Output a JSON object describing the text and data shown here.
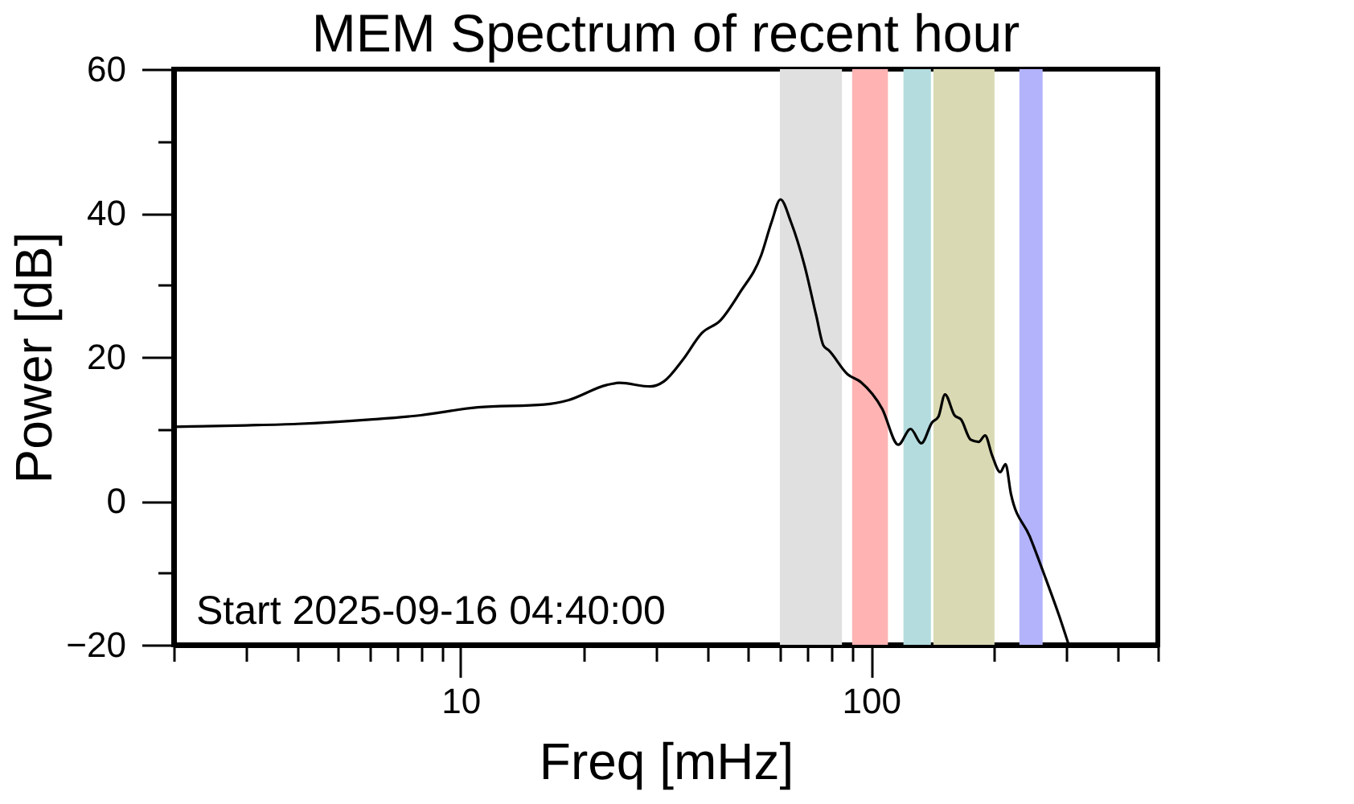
{
  "chart_data": {
    "type": "line",
    "title": "MEM Spectrum of recent hour",
    "xlabel": "Freq [mHz]",
    "ylabel": "Power [dB]",
    "x": [
      2,
      3,
      4,
      6,
      8,
      11,
      16,
      18.3,
      22.7,
      24.4,
      29,
      31.3,
      34.8,
      38.7,
      43,
      48,
      54,
      57.3,
      60.2,
      63.8,
      68.9,
      73.6,
      76.6,
      79,
      87.7,
      94.5,
      106.5,
      116.6,
      124.9,
      132.7,
      140.9,
      146,
      151.5,
      159.8,
      165.8,
      175,
      183,
      189.7,
      197.4,
      206.5,
      212.8,
      219.3,
      243.6,
      266.6,
      287.2,
      302.5
    ],
    "series": [
      {
        "color": "#000000",
        "values": [
          10.3,
          10.5,
          10.7,
          11.3,
          11.9,
          13.0,
          13.4,
          14.0,
          16.1,
          16.4,
          15.9,
          16.6,
          19.6,
          23.3,
          25.1,
          29.0,
          34.1,
          38.8,
          41.9,
          38.8,
          32.7,
          25.7,
          21.6,
          20.9,
          17.6,
          16.5,
          12.8,
          7.8,
          10.0,
          8.0,
          10.9,
          11.7,
          14.8,
          11.9,
          11.3,
          8.5,
          8.2,
          9.1,
          6.3,
          4.0,
          5.1,
          1.0,
          -4.9,
          -10.8,
          -15.9,
          -19.8
        ]
      }
    ],
    "xlim": [
      2,
      500
    ],
    "ylim": [
      -20,
      60
    ],
    "xticks": [
      {
        "value": 2,
        "label": null
      },
      {
        "value": 3,
        "label": null
      },
      {
        "value": 4,
        "label": null
      },
      {
        "value": 5,
        "label": null
      },
      {
        "value": 6,
        "label": null
      },
      {
        "value": 7,
        "label": null
      },
      {
        "value": 8,
        "label": null
      },
      {
        "value": 9,
        "label": null
      },
      10,
      {
        "value": 20,
        "label": null
      },
      {
        "value": 30,
        "label": null
      },
      {
        "value": 40,
        "label": null
      },
      {
        "value": 50,
        "label": null
      },
      {
        "value": 60,
        "label": null
      },
      {
        "value": 70,
        "label": null
      },
      {
        "value": 80,
        "label": null
      },
      {
        "value": 90,
        "label": null
      },
      100,
      {
        "value": 200,
        "label": null
      },
      {
        "value": 300,
        "label": null
      },
      {
        "value": 400,
        "label": null
      },
      {
        "value": 500,
        "label": null
      }
    ],
    "yticks": [
      -20,
      {
        "value": -10,
        "label": null
      },
      0,
      {
        "value": 10,
        "label": null
      },
      20,
      {
        "value": 30,
        "label": null
      },
      40,
      {
        "value": 50,
        "label": null
      },
      60
    ],
    "log": "x",
    "grid": false,
    "line_style": "solid",
    "bands": [
      {
        "axis": "x",
        "from": 60,
        "to": 85,
        "color": "#e0e0e0"
      },
      {
        "axis": "x",
        "from": 90,
        "to": 110,
        "color": "#ffb3b3"
      },
      {
        "axis": "x",
        "from": 120,
        "to": 140,
        "color": "#b4dcdf"
      },
      {
        "axis": "x",
        "from": 142,
        "to": 200,
        "color": "#d9d9b3"
      },
      {
        "axis": "x",
        "from": 230,
        "to": 262,
        "color": "#b3b3fc"
      }
    ],
    "annotations": [
      "Start 2025-09-16 04:40:00"
    ]
  }
}
